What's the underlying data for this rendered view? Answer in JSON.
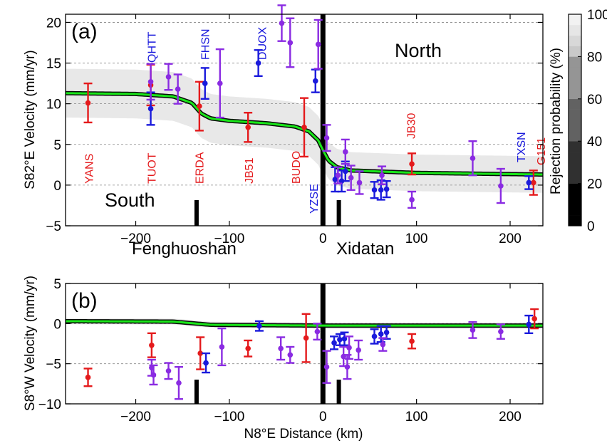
{
  "chart_data": [
    {
      "panel": "(a)",
      "type": "scatter",
      "ylabel": "S82°E Velocity (mm/yr)",
      "xlim": [
        -275,
        235
      ],
      "ylim": [
        -5,
        21
      ],
      "xticks": [
        "−200",
        "−100",
        "0",
        "100",
        "200"
      ],
      "xtick_values": [
        -200,
        -100,
        0,
        100,
        200
      ],
      "yticks": [
        "−5",
        "0",
        "5",
        "10",
        "15",
        "20"
      ],
      "ytick_values": [
        -5,
        0,
        5,
        10,
        15,
        20
      ],
      "grid": "horizontal dashed",
      "annotations": {
        "north": "North",
        "south": "South",
        "fenghuoshan": "Fenghuoshan",
        "xidatan": "Xidatan"
      },
      "model": {
        "best_fit": [
          [
            -275,
            11.3
          ],
          [
            -200,
            11.2
          ],
          [
            -160,
            10.9
          ],
          [
            -140,
            10.1
          ],
          [
            -130,
            8.8
          ],
          [
            -120,
            8.2
          ],
          [
            -100,
            7.9
          ],
          [
            -60,
            7.6
          ],
          [
            -30,
            7.2
          ],
          [
            -15,
            6.6
          ],
          [
            -5,
            5.5
          ],
          [
            0,
            4.3
          ],
          [
            6,
            3.0
          ],
          [
            15,
            2.2
          ],
          [
            30,
            1.8
          ],
          [
            100,
            1.5
          ],
          [
            235,
            1.3
          ]
        ]
      },
      "site_labels": [
        {
          "name": "YANS",
          "x": -251,
          "color": "red"
        },
        {
          "name": "QHTT",
          "x": -184,
          "color": "blue"
        },
        {
          "name": "TUOT",
          "x": -184,
          "color": "red"
        },
        {
          "name": "ERDA",
          "x": -133,
          "color": "red"
        },
        {
          "name": "FHSN",
          "x": -127,
          "color": "blue"
        },
        {
          "name": "JB51",
          "x": -80,
          "color": "red"
        },
        {
          "name": "DUOX",
          "x": -66,
          "color": "blue"
        },
        {
          "name": "BUDO",
          "x": -30,
          "color": "red"
        },
        {
          "name": "YZSE",
          "x": -11,
          "color": "blue"
        },
        {
          "name": "JB30",
          "x": 93,
          "color": "red"
        },
        {
          "name": "TXSN",
          "x": 212,
          "color": "blue"
        },
        {
          "name": "G151",
          "x": 226,
          "color": "red"
        }
      ],
      "series": [
        {
          "color": "red",
          "points": [
            {
              "x": -251,
              "y": 10.1,
              "err": 2.4
            },
            {
              "x": -184,
              "y": 12.3,
              "err": 2.5
            },
            {
              "x": -132,
              "y": 9.7,
              "err": 3.0
            },
            {
              "x": -80,
              "y": 7.1,
              "err": 1.8
            },
            {
              "x": -20,
              "y": 7.1,
              "err": 3.6
            },
            {
              "x": 95,
              "y": 2.6,
              "err": 1.3
            },
            {
              "x": 225,
              "y": 0.3,
              "err": 1.5
            }
          ]
        },
        {
          "color": "blue",
          "points": [
            {
              "x": -184,
              "y": 9.4,
              "err": 2.0
            },
            {
              "x": -126,
              "y": 12.5,
              "err": 1.9
            },
            {
              "x": -69,
              "y": 15.0,
              "err": 1.6
            },
            {
              "x": -8,
              "y": 12.8,
              "err": 1.4
            },
            {
              "x": 13,
              "y": 0.7,
              "err": 1.5
            },
            {
              "x": 20,
              "y": 0.5,
              "err": 1.3
            },
            {
              "x": 24,
              "y": 1.7,
              "err": 1.2
            },
            {
              "x": 55,
              "y": -0.6,
              "err": 1.0
            },
            {
              "x": 62,
              "y": -0.6,
              "err": 1.2
            },
            {
              "x": 68,
              "y": -0.5,
              "err": 1.0
            },
            {
              "x": 220,
              "y": 0.3,
              "err": 0.8
            }
          ]
        },
        {
          "color": "purple",
          "points": [
            {
              "x": -184,
              "y": 12.7,
              "err": 2.2
            },
            {
              "x": -165,
              "y": 13.3,
              "err": 1.6
            },
            {
              "x": -155,
              "y": 11.8,
              "err": 1.8
            },
            {
              "x": -110,
              "y": 12.5,
              "err": 4.2
            },
            {
              "x": -44,
              "y": 19.9,
              "err": 2.2
            },
            {
              "x": -35,
              "y": 17.5,
              "err": 3.0
            },
            {
              "x": -5,
              "y": 17.3,
              "err": 3.0
            },
            {
              "x": 4,
              "y": 5.8,
              "err": 1.6
            },
            {
              "x": 16,
              "y": 1.2,
              "err": 1.0
            },
            {
              "x": 24,
              "y": 4.1,
              "err": 1.5
            },
            {
              "x": 30,
              "y": 0.9,
              "err": 1.5
            },
            {
              "x": 39,
              "y": 0.3,
              "err": 1.4
            },
            {
              "x": 63,
              "y": 1.2,
              "err": 1.1
            },
            {
              "x": 95,
              "y": -1.8,
              "err": 1.0
            },
            {
              "x": 160,
              "y": 3.3,
              "err": 2.1
            },
            {
              "x": 190,
              "y": -0.1,
              "err": 2.1
            }
          ]
        }
      ]
    },
    {
      "panel": "(b)",
      "type": "scatter",
      "ylabel": "S8°W Velocity (mm/yr)",
      "xlabel": "N8°E Distance (km)",
      "xlim": [
        -275,
        235
      ],
      "ylim": [
        -10,
        5
      ],
      "xticks": [
        "−200",
        "−100",
        "0",
        "100",
        "200"
      ],
      "xtick_values": [
        -200,
        -100,
        0,
        100,
        200
      ],
      "yticks": [
        "−10",
        "−5",
        "0",
        "5"
      ],
      "ytick_values": [
        -10,
        -5,
        0,
        5
      ],
      "grid": "horizontal dashed",
      "model": {
        "best_fit": [
          [
            -275,
            0.3
          ],
          [
            -160,
            0.25
          ],
          [
            -140,
            0.05
          ],
          [
            -120,
            -0.15
          ],
          [
            -60,
            -0.2
          ],
          [
            0,
            -0.25
          ],
          [
            235,
            -0.25
          ]
        ]
      },
      "series": [
        {
          "color": "red",
          "points": [
            {
              "x": -251,
              "y": -6.7,
              "err": 1.1
            },
            {
              "x": -183,
              "y": -2.7,
              "err": 1.5
            },
            {
              "x": -131,
              "y": -3.7,
              "err": 2.0
            },
            {
              "x": -80,
              "y": -3.1,
              "err": 1.0
            },
            {
              "x": -18,
              "y": -1.8,
              "err": 3.0
            },
            {
              "x": 95,
              "y": -2.2,
              "err": 0.9
            },
            {
              "x": 226,
              "y": 0.6,
              "err": 1.2
            }
          ]
        },
        {
          "color": "blue",
          "points": [
            {
              "x": -125,
              "y": -4.9,
              "err": 1.2
            },
            {
              "x": -68,
              "y": -0.3,
              "err": 0.6
            },
            {
              "x": 12,
              "y": -2.4,
              "err": 0.8
            },
            {
              "x": 18,
              "y": -2.0,
              "err": 0.7
            },
            {
              "x": 23,
              "y": -1.9,
              "err": 0.8
            },
            {
              "x": 55,
              "y": -1.6,
              "err": 0.9
            },
            {
              "x": 62,
              "y": -1.3,
              "err": 1.0
            },
            {
              "x": 68,
              "y": -1.1,
              "err": 0.8
            },
            {
              "x": 220,
              "y": -0.1,
              "err": 1.1
            }
          ]
        },
        {
          "color": "purple",
          "points": [
            {
              "x": -183,
              "y": -5.5,
              "err": 1.0
            },
            {
              "x": -181,
              "y": -6.4,
              "err": 1.2
            },
            {
              "x": -165,
              "y": -5.9,
              "err": 1.0
            },
            {
              "x": -154,
              "y": -7.4,
              "err": 2.0
            },
            {
              "x": -108,
              "y": -2.9,
              "err": 2.3
            },
            {
              "x": -45,
              "y": -3.1,
              "err": 1.4
            },
            {
              "x": -35,
              "y": -3.9,
              "err": 1.0
            },
            {
              "x": -6,
              "y": -1.0,
              "err": 1.0
            },
            {
              "x": 4,
              "y": -5.4,
              "err": 2.0
            },
            {
              "x": 22,
              "y": -4.1,
              "err": 1.2
            },
            {
              "x": 26,
              "y": -5.4,
              "err": 1.5
            },
            {
              "x": 28,
              "y": -3.0,
              "err": 1.4
            },
            {
              "x": 38,
              "y": -3.3,
              "err": 1.2
            },
            {
              "x": 64,
              "y": -2.6,
              "err": 0.8
            },
            {
              "x": 160,
              "y": -0.8,
              "err": 1.0
            },
            {
              "x": 190,
              "y": -1.0,
              "err": 0.9
            }
          ]
        }
      ]
    }
  ],
  "fault_markers": [
    {
      "x": -135,
      "kind": "short"
    },
    {
      "x": 0,
      "kind": "tall"
    },
    {
      "x": 17,
      "kind": "short"
    }
  ],
  "colorbar": {
    "label": "Rejection probability (%)",
    "ticks": [
      "0",
      "20",
      "40",
      "60",
      "80",
      "100"
    ],
    "tick_values": [
      0,
      20,
      40,
      60,
      80,
      100
    ]
  },
  "colors": {
    "red": "#e41a1c",
    "blue": "#1a1adc",
    "purple": "#8a2be2",
    "fit": "#19e619",
    "envelope_levels": [
      "#060606",
      "#3a3a3a",
      "#6e6e6e",
      "#9a9a9a",
      "#c8c8c8",
      "#e8e8e8"
    ]
  }
}
